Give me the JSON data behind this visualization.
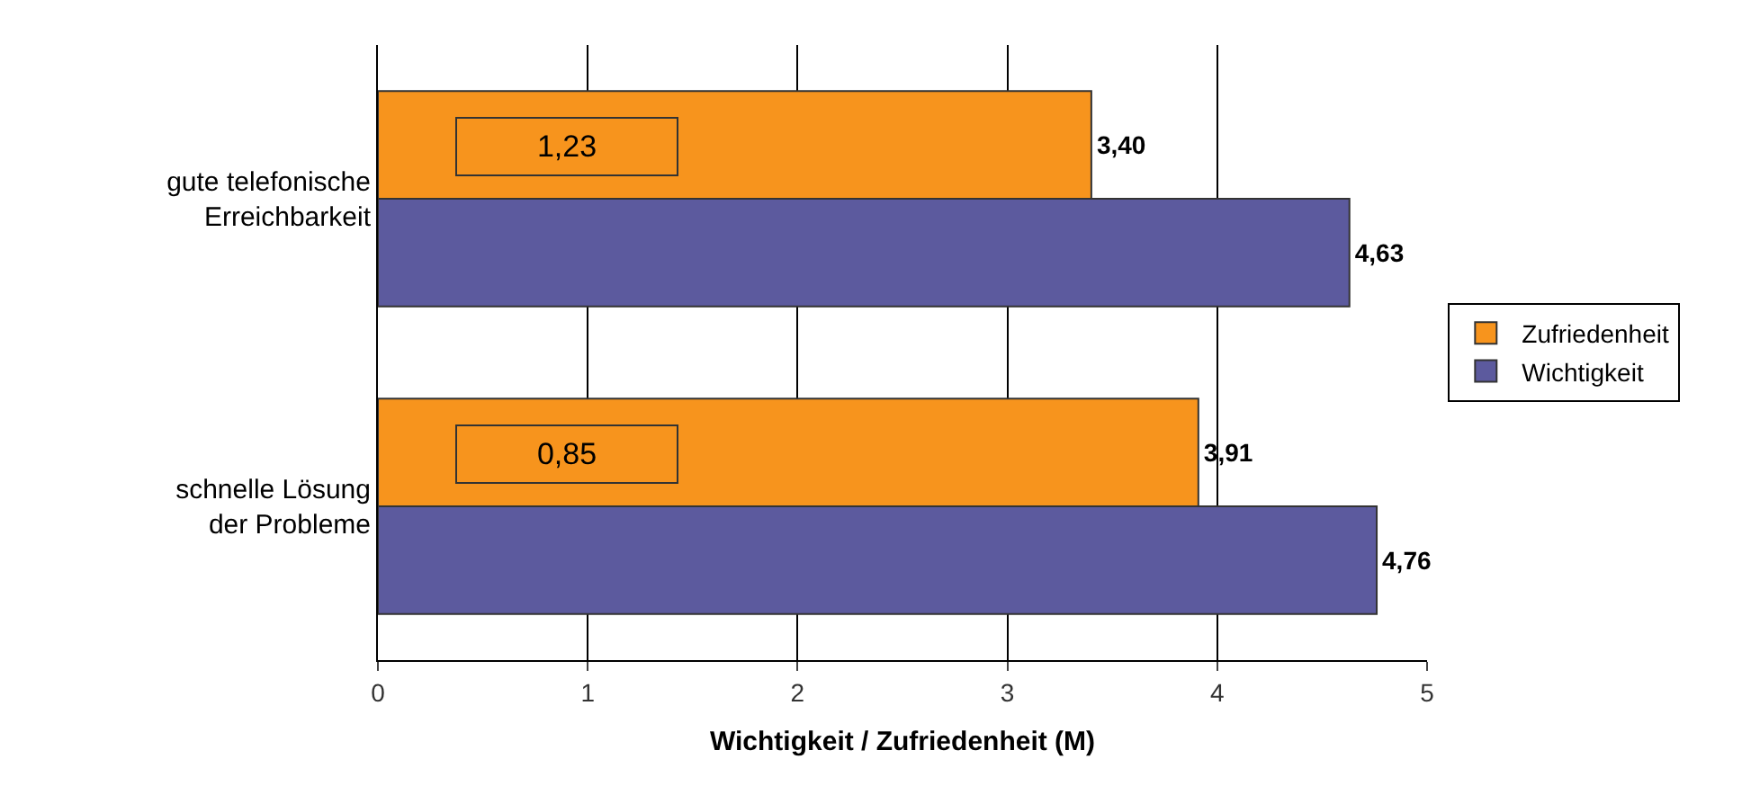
{
  "chart_data": {
    "type": "bar",
    "orientation": "horizontal",
    "xlabel": "Wichtigkeit / Zufriedenheit (M)",
    "categories": [
      "gute telefonische Erreichbarkeit",
      "schnelle Lösung der Probleme"
    ],
    "series": [
      {
        "name": "Zufriedenheit",
        "color": "#f7941d",
        "values": [
          3.4,
          3.91
        ],
        "value_labels": [
          "3,40",
          "3,91"
        ]
      },
      {
        "name": "Wichtigkeit",
        "color": "#5c5a9e",
        "values": [
          4.63,
          4.76
        ],
        "value_labels": [
          "4,63",
          "4,76"
        ]
      }
    ],
    "annotations": [
      "1,23",
      "0,85"
    ],
    "xlim": [
      0,
      5
    ],
    "xticks": [
      0,
      1,
      2,
      3,
      4,
      5
    ],
    "grid": "x",
    "legend": "right"
  }
}
